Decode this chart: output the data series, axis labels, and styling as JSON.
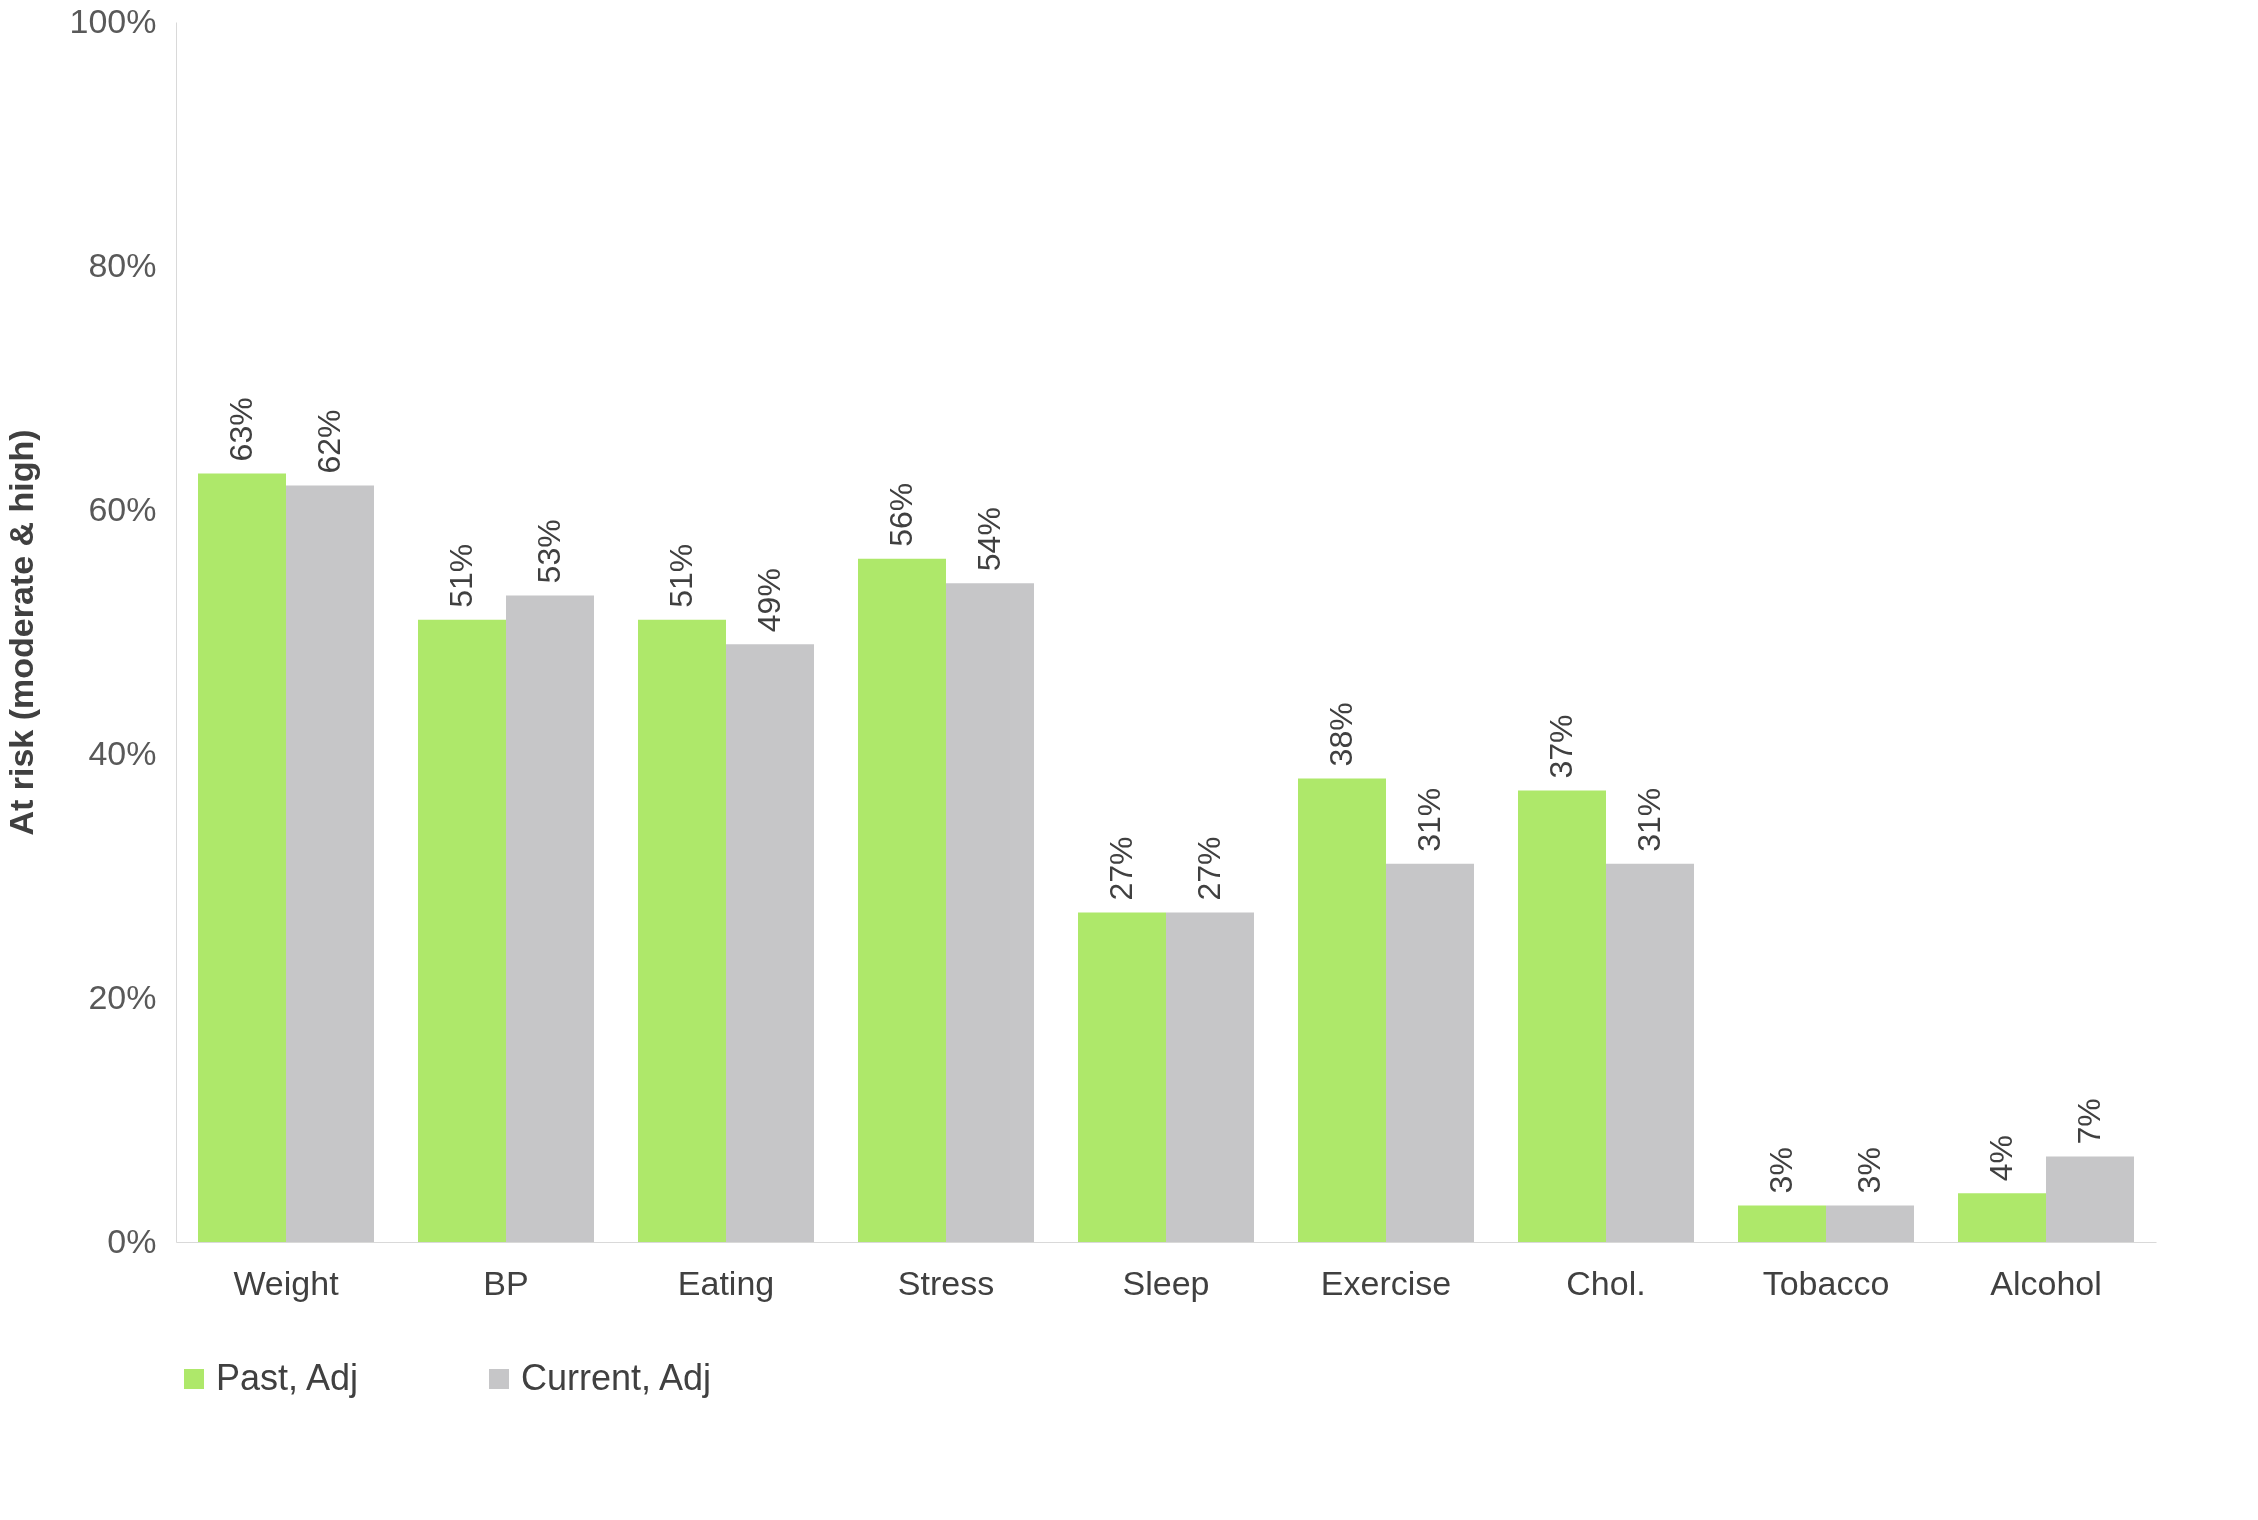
{
  "chart_data": {
    "type": "bar",
    "ylabel": "At risk (moderate & high)",
    "categories": [
      "Weight",
      "BP",
      "Eating",
      "Stress",
      "Sleep",
      "Exercise",
      "Chol.",
      "Tobacco",
      "Alcohol"
    ],
    "series": [
      {
        "name": "Past, Adj",
        "color": "#aee86a",
        "values": [
          63,
          51,
          51,
          56,
          27,
          38,
          37,
          3,
          4
        ],
        "value_labels": [
          "63%",
          "51%",
          "51%",
          "56%",
          "27%",
          "38%",
          "37%",
          "3%",
          "4%"
        ]
      },
      {
        "name": "Current, Adj",
        "color": "#c6c6c8",
        "values": [
          62,
          53,
          49,
          54,
          27,
          31,
          31,
          3,
          7
        ],
        "value_labels": [
          "62%",
          "53%",
          "49%",
          "54%",
          "27%",
          "31%",
          "31%",
          "3%",
          "7%"
        ]
      }
    ],
    "ylim": [
      0,
      100
    ],
    "yticks": [
      {
        "value": 0,
        "label": "0%"
      },
      {
        "value": 20,
        "label": "20%"
      },
      {
        "value": 40,
        "label": "40%"
      },
      {
        "value": 60,
        "label": "60%"
      },
      {
        "value": 80,
        "label": "80%"
      },
      {
        "value": 100,
        "label": "100%"
      }
    ],
    "grid": false,
    "legend": "bottom"
  }
}
